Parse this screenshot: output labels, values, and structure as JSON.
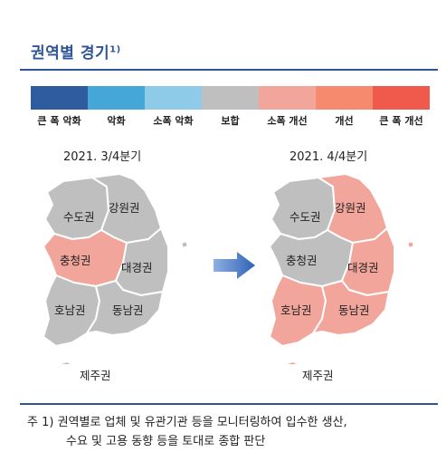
{
  "title": "권역별 경기",
  "title_note": "1)",
  "legend": [
    {
      "label": "큰 폭 악화",
      "color": "#2e5c9e"
    },
    {
      "label": "악화",
      "color": "#45a6d8"
    },
    {
      "label": "소폭 악화",
      "color": "#8ecbe8"
    },
    {
      "label": "보합",
      "color": "#bfbfbf"
    },
    {
      "label": "소폭 개선",
      "color": "#f2a59b"
    },
    {
      "label": "개선",
      "color": "#f58a6e"
    },
    {
      "label": "큰 폭 개선",
      "color": "#f05a4d"
    }
  ],
  "maps": [
    {
      "period": "2021. 3/4분기",
      "regions": {
        "gangwon": {
          "name": "강원권",
          "status": "보합"
        },
        "sudo": {
          "name": "수도권",
          "status": "보합"
        },
        "chungcheong": {
          "name": "충청권",
          "status": "소폭 개선"
        },
        "daegyeong": {
          "name": "대경권",
          "status": "보합"
        },
        "honam": {
          "name": "호남권",
          "status": "보합"
        },
        "dongnam": {
          "name": "동남권",
          "status": "보합"
        },
        "jeju": {
          "name": "제주권",
          "status": "보합"
        }
      }
    },
    {
      "period": "2021. 4/4분기",
      "regions": {
        "gangwon": {
          "name": "강원권",
          "status": "소폭 개선"
        },
        "sudo": {
          "name": "수도권",
          "status": "보합"
        },
        "chungcheong": {
          "name": "충청권",
          "status": "보합"
        },
        "daegyeong": {
          "name": "대경권",
          "status": "소폭 개선"
        },
        "honam": {
          "name": "호남권",
          "status": "소폭 개선"
        },
        "dongnam": {
          "name": "동남권",
          "status": "소폭 개선"
        },
        "jeju": {
          "name": "제주권",
          "status": "소폭 개선"
        }
      }
    }
  ],
  "footnote": {
    "marker": "주  1)",
    "line1": "권역별로 업체 및 유관기관 등을 모니터링하여 입수한 생산,",
    "line2": "수요 및 고용 동향 등을 토대로 종합 판단"
  }
}
